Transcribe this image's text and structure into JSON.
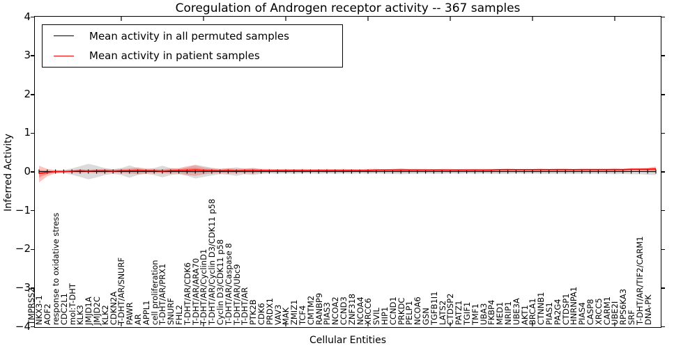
{
  "chart_data": {
    "type": "line",
    "title": "Coregulation of Androgen receptor activity -- 367 samples",
    "xlabel": "Cellular Entities",
    "ylabel": "Inferred Activity",
    "ylim": [
      -4,
      4
    ],
    "ytick_labels": [
      "4",
      "3",
      "2",
      "1",
      "0",
      "−1",
      "−2",
      "−3",
      "−4"
    ],
    "x_major_tick_every": 10,
    "grid": false,
    "legend": {
      "position": "upper left",
      "entries": [
        {
          "label": "Mean activity in all permuted samples",
          "color": "#000000"
        },
        {
          "label": "Mean activity in patient samples",
          "color": "#ff0000"
        }
      ]
    },
    "colors": {
      "permuted_line": "#000000",
      "patient_line": "#ff0000",
      "permuted_band": "#999999",
      "patient_band": "#ff3b30"
    },
    "categories": [
      "TMPRSS2",
      "NKX3-1",
      "AOF2",
      "response to oxidative stress",
      "CDC2L1",
      "mol:T-DHT",
      "KLK3",
      "JMJD1A",
      "JMJD2C",
      "KLK2",
      "CDKN2A",
      "T-DHT/AR/SNURF",
      "PAWR",
      "AR",
      "APPL1",
      "cell proliferation",
      "T-DHT/AR/PRX1",
      "SNURF",
      "FHL2",
      "T-DHT/AR/CDK6",
      "T-DHT/AR/ARA70",
      "T-DHT/AR/CyclinD1",
      "T-DHT/AR/Cyclin D3/CDK11 p58",
      "Cyclin D3/CDK11 p58",
      "T-DHT/AR/Caspase 8",
      "T-DHT/AR/Ubc9",
      "T-DHT/AR",
      "PTK2B",
      "CDK6",
      "PRDX1",
      "VAV3",
      "MAK",
      "ZMIZ1",
      "TCF4",
      "CMTM2",
      "RANBP9",
      "PIAS3",
      "NCOA2",
      "CCND3",
      "ZNF318",
      "NCOA4",
      "XRCC6",
      "SVIL",
      "HIP1",
      "CCND1",
      "PRKDC",
      "PELP1",
      "NCOA6",
      "GSN",
      "TGFB1I1",
      "LATS2",
      "CTDSP2",
      "PATZ1",
      "TGIF1",
      "TMF1",
      "UBA3",
      "FKBP4",
      "MED1",
      "NRIP1",
      "UBE3A",
      "AKT1",
      "BRCA1",
      "CTNNB1",
      "PIAS1",
      "PA2G4",
      "CTDSP1",
      "HNRNPA1",
      "PIAS4",
      "CASP8",
      "XRCC5",
      "CARM1",
      "UBE2I",
      "RPS6KA3",
      "SRF",
      "T-DHT/AR/TIF2/CARM1",
      "DNA-PK"
    ],
    "series": [
      {
        "name": "Mean activity in all permuted samples",
        "values": [
          0,
          0,
          0,
          0,
          0,
          0,
          0,
          0,
          0,
          0,
          0,
          0,
          0,
          0,
          0,
          0,
          0,
          0,
          0,
          0,
          0,
          0,
          0,
          0,
          0,
          0,
          0,
          0,
          0,
          0,
          0,
          0,
          0,
          0,
          0,
          0,
          0,
          0,
          0,
          0,
          0,
          0,
          0,
          0,
          0,
          0,
          0,
          0,
          0,
          0,
          0,
          0,
          0,
          0,
          0,
          0,
          0,
          0,
          0,
          0,
          0,
          0,
          0,
          0,
          0,
          0,
          0,
          0,
          0,
          0,
          0,
          0,
          0,
          0,
          0,
          0
        ]
      },
      {
        "name": "Mean activity in patient samples",
        "values": [
          -0.05,
          -0.02,
          0,
          0,
          0.01,
          0.02,
          0.01,
          0.02,
          0.02,
          0.01,
          0.02,
          0.02,
          0.03,
          0.02,
          0.02,
          0.01,
          0.02,
          0.03,
          0.03,
          0.04,
          0.03,
          0.03,
          0.02,
          0.03,
          0.02,
          0.03,
          0.03,
          0.03,
          0.03,
          0.03,
          0.03,
          0.03,
          0.03,
          0.03,
          0.03,
          0.03,
          0.03,
          0.03,
          0.03,
          0.03,
          0.03,
          0.04,
          0.04,
          0.04,
          0.04,
          0.04,
          0.04,
          0.04,
          0.04,
          0.04,
          0.04,
          0.04,
          0.04,
          0.04,
          0.04,
          0.04,
          0.05,
          0.05,
          0.05,
          0.05,
          0.05,
          0.05,
          0.05,
          0.05,
          0.05,
          0.05,
          0.05,
          0.05,
          0.05,
          0.05,
          0.05,
          0.05,
          0.06,
          0.06,
          0.06,
          0.07
        ]
      }
    ],
    "bands": [
      {
        "name": "permuted-confidence-band",
        "upper": [
          0.03,
          0.03,
          0.03,
          0.04,
          0.08,
          0.14,
          0.2,
          0.15,
          0.09,
          0.06,
          0.09,
          0.16,
          0.09,
          0.06,
          0.09,
          0.15,
          0.09,
          0.07,
          0.11,
          0.18,
          0.14,
          0.1,
          0.07,
          0.08,
          0.11,
          0.07,
          0.09,
          0.06,
          0.05,
          0.06,
          0.05,
          0.06,
          0.05,
          0.05,
          0.06,
          0.05,
          0.06,
          0.05,
          0.06,
          0.05,
          0.06,
          0.05,
          0.06,
          0.06,
          0.07,
          0.06,
          0.06,
          0.05,
          0.06,
          0.06,
          0.05,
          0.06,
          0.05,
          0.06,
          0.05,
          0.06,
          0.06,
          0.06,
          0.05,
          0.06,
          0.05,
          0.06,
          0.06,
          0.06,
          0.06,
          0.06,
          0.06,
          0.06,
          0.06,
          0.06,
          0.07,
          0.06,
          0.07,
          0.07,
          0.08,
          0.09
        ],
        "lower": [
          -0.03,
          -0.03,
          -0.03,
          -0.04,
          -0.08,
          -0.14,
          -0.2,
          -0.15,
          -0.09,
          -0.06,
          -0.09,
          -0.16,
          -0.09,
          -0.06,
          -0.09,
          -0.15,
          -0.09,
          -0.07,
          -0.11,
          -0.18,
          -0.14,
          -0.1,
          -0.07,
          -0.08,
          -0.11,
          -0.07,
          -0.09,
          -0.06,
          -0.05,
          -0.06,
          -0.05,
          -0.06,
          -0.05,
          -0.05,
          -0.06,
          -0.05,
          -0.06,
          -0.05,
          -0.06,
          -0.05,
          -0.06,
          -0.05,
          -0.06,
          -0.06,
          -0.07,
          -0.06,
          -0.06,
          -0.05,
          -0.06,
          -0.06,
          -0.05,
          -0.06,
          -0.05,
          -0.06,
          -0.05,
          -0.06,
          -0.06,
          -0.06,
          -0.05,
          -0.06,
          -0.05,
          -0.06,
          -0.06,
          -0.06,
          -0.06,
          -0.06,
          -0.06,
          -0.06,
          -0.06,
          -0.06,
          -0.07,
          -0.06,
          -0.07,
          -0.07,
          -0.08,
          -0.09
        ]
      },
      {
        "name": "patient-confidence-band",
        "upper": [
          0.15,
          0.07,
          0.04,
          0.03,
          0.04,
          0.06,
          0.05,
          0.06,
          0.07,
          0.06,
          0.07,
          0.08,
          0.11,
          0.08,
          0.07,
          0.06,
          0.08,
          0.09,
          0.14,
          0.16,
          0.11,
          0.08,
          0.07,
          0.09,
          0.07,
          0.08,
          0.09,
          0.07,
          0.07,
          0.06,
          0.07,
          0.06,
          0.07,
          0.06,
          0.06,
          0.07,
          0.06,
          0.07,
          0.06,
          0.06,
          0.07,
          0.07,
          0.06,
          0.07,
          0.08,
          0.07,
          0.07,
          0.07,
          0.06,
          0.07,
          0.07,
          0.06,
          0.07,
          0.07,
          0.07,
          0.07,
          0.07,
          0.08,
          0.07,
          0.07,
          0.07,
          0.08,
          0.07,
          0.08,
          0.08,
          0.07,
          0.08,
          0.08,
          0.08,
          0.08,
          0.09,
          0.08,
          0.09,
          0.09,
          0.1,
          0.13
        ],
        "lower": [
          -0.28,
          -0.12,
          -0.05,
          -0.03,
          -0.03,
          -0.04,
          -0.03,
          -0.04,
          -0.04,
          -0.03,
          -0.04,
          -0.05,
          -0.07,
          -0.05,
          -0.04,
          -0.04,
          -0.05,
          -0.05,
          -0.09,
          -0.11,
          -0.07,
          -0.05,
          -0.04,
          -0.05,
          -0.04,
          -0.04,
          -0.05,
          -0.03,
          -0.03,
          -0.02,
          -0.03,
          -0.02,
          -0.03,
          -0.02,
          -0.02,
          -0.03,
          -0.02,
          -0.03,
          -0.02,
          -0.02,
          -0.03,
          -0.02,
          -0.02,
          -0.02,
          -0.03,
          -0.02,
          -0.02,
          -0.02,
          -0.02,
          -0.02,
          -0.02,
          -0.02,
          -0.02,
          -0.02,
          -0.02,
          -0.02,
          -0.02,
          -0.02,
          -0.02,
          -0.02,
          -0.02,
          -0.02,
          -0.02,
          -0.02,
          -0.02,
          -0.02,
          -0.02,
          -0.02,
          -0.02,
          -0.02,
          -0.02,
          -0.02,
          -0.01,
          -0.01,
          -0.02,
          -0.03
        ]
      }
    ]
  }
}
